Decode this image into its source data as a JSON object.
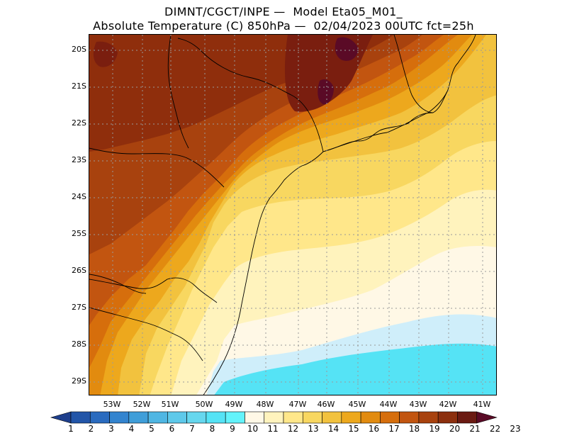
{
  "title_line1": "DIMNT/CGCT/INPE —  Model Eta05_M01_",
  "title_line2": "Absolute Temperature (C) 850hPa —  02/04/2023 00UTC fct=25h",
  "lat_labels": [
    "20S",
    "21S",
    "22S",
    "23S",
    "24S",
    "25S",
    "26S",
    "27S",
    "28S",
    "29S"
  ],
  "lon_labels": [
    "53W",
    "52W",
    "51W",
    "50W",
    "49W",
    "48W",
    "47W",
    "46W",
    "45W",
    "44W",
    "43W",
    "42W",
    "41W"
  ],
  "colorbar": {
    "labels": [
      "1",
      "2",
      "3",
      "4",
      "5",
      "6",
      "7",
      "8",
      "9",
      "10",
      "11",
      "12",
      "13",
      "14",
      "15",
      "16",
      "17",
      "18",
      "19",
      "20",
      "21",
      "22",
      "23"
    ],
    "colors": [
      "#1e3f8c",
      "#2255a8",
      "#2a6bbf",
      "#3384cf",
      "#3f9ed9",
      "#4fb6e3",
      "#5ec9ea",
      "#66d7ee",
      "#55e3f5",
      "#63f3fb",
      "#fff8e6",
      "#fff3bd",
      "#ffe78a",
      "#f8d760",
      "#f2c23e",
      "#eda81d",
      "#e28b0f",
      "#d66e0c",
      "#c25510",
      "#a8420e",
      "#8c2f0e",
      "#6a1a12",
      "#5a0a26"
    ]
  },
  "map_colors": {
    "deep_red": "#7a1e0f",
    "dark": "#8f2e0c",
    "orange_red": "#a8420e",
    "rust": "#c25510",
    "orange": "#d66e0c",
    "mid_orange": "#e28b0f",
    "amber": "#eda81d",
    "gold": "#f2c23e",
    "yellow": "#f8d760",
    "light_yellow": "#ffe78a",
    "pale_yellow": "#fff3bd",
    "cream": "#fff8e6",
    "light_blue": "#cfeefa",
    "cyan": "#63f3fb",
    "aqua": "#55e3f5",
    "maroon": "#5a0a26"
  }
}
